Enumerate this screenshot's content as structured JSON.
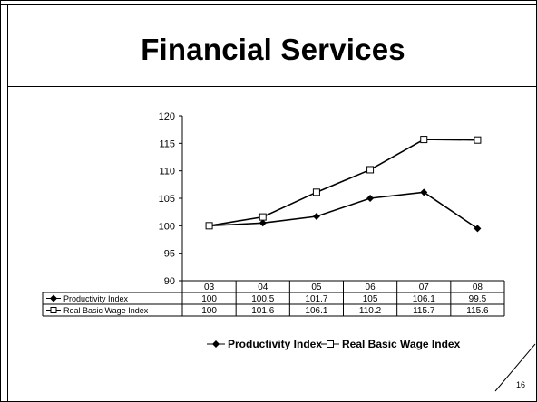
{
  "slide": {
    "title": "Financial Services",
    "page_number": "16"
  },
  "chart_data": {
    "type": "line",
    "categories": [
      "03",
      "04",
      "05",
      "06",
      "07",
      "08"
    ],
    "series": [
      {
        "name": "Productivity Index",
        "values": [
          100,
          100.5,
          101.7,
          105,
          106.1,
          99.5
        ],
        "marker": "diamond-filled",
        "color": "#000000"
      },
      {
        "name": "Real Basic Wage Index",
        "values": [
          100,
          101.6,
          106.1,
          110.2,
          115.7,
          115.6
        ],
        "marker": "square-open",
        "color": "#000000"
      }
    ],
    "table_values": [
      [
        "100",
        "100.5",
        "101.7",
        "105",
        "106.1",
        "99.5"
      ],
      [
        "100",
        "101.6",
        "106.1",
        "110.2",
        "115.7",
        "115.6"
      ]
    ],
    "ylim": [
      90,
      120
    ],
    "yticks": [
      "90",
      "95",
      "100",
      "105",
      "110",
      "115",
      "120"
    ],
    "grid": false,
    "legend_position": "bottom",
    "data_table": true
  }
}
